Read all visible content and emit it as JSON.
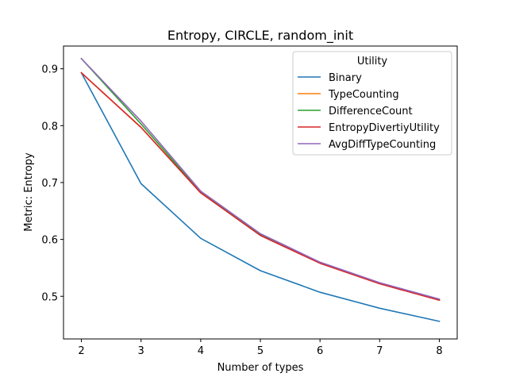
{
  "chart_data": {
    "type": "line",
    "title": "Entropy, CIRCLE, random_init",
    "xlabel": "Number of types",
    "ylabel": "Metric: Entropy",
    "x": [
      2,
      3,
      4,
      5,
      6,
      7,
      8
    ],
    "xlim": [
      1.7,
      8.3
    ],
    "ylim": [
      0.425,
      0.94
    ],
    "xticks": [
      "2",
      "3",
      "4",
      "5",
      "6",
      "7",
      "8"
    ],
    "yticks": [
      "0.5",
      "0.6",
      "0.7",
      "0.8",
      "0.9"
    ],
    "grid": false,
    "legend": {
      "title": "Utility",
      "placement": "upper right"
    },
    "series": [
      {
        "name": "Binary",
        "color": "#1f77b4",
        "values": [
          0.893,
          0.698,
          0.602,
          0.545,
          0.507,
          0.479,
          0.456
        ]
      },
      {
        "name": "TypeCounting",
        "color": "#ff7f0e",
        "values": [
          0.893,
          0.797,
          0.682,
          0.608,
          0.559,
          0.523,
          0.494
        ]
      },
      {
        "name": "DifferenceCount",
        "color": "#2ca02c",
        "values": [
          0.918,
          0.803,
          0.683,
          0.608,
          0.559,
          0.523,
          0.494
        ]
      },
      {
        "name": "EntropyDivertiyUtility",
        "color": "#d62728",
        "values": [
          0.893,
          0.797,
          0.682,
          0.607,
          0.558,
          0.522,
          0.493
        ]
      },
      {
        "name": "AvgDiffTypeCounting",
        "color": "#9467bd",
        "values": [
          0.918,
          0.808,
          0.685,
          0.61,
          0.56,
          0.524,
          0.495
        ]
      }
    ]
  }
}
